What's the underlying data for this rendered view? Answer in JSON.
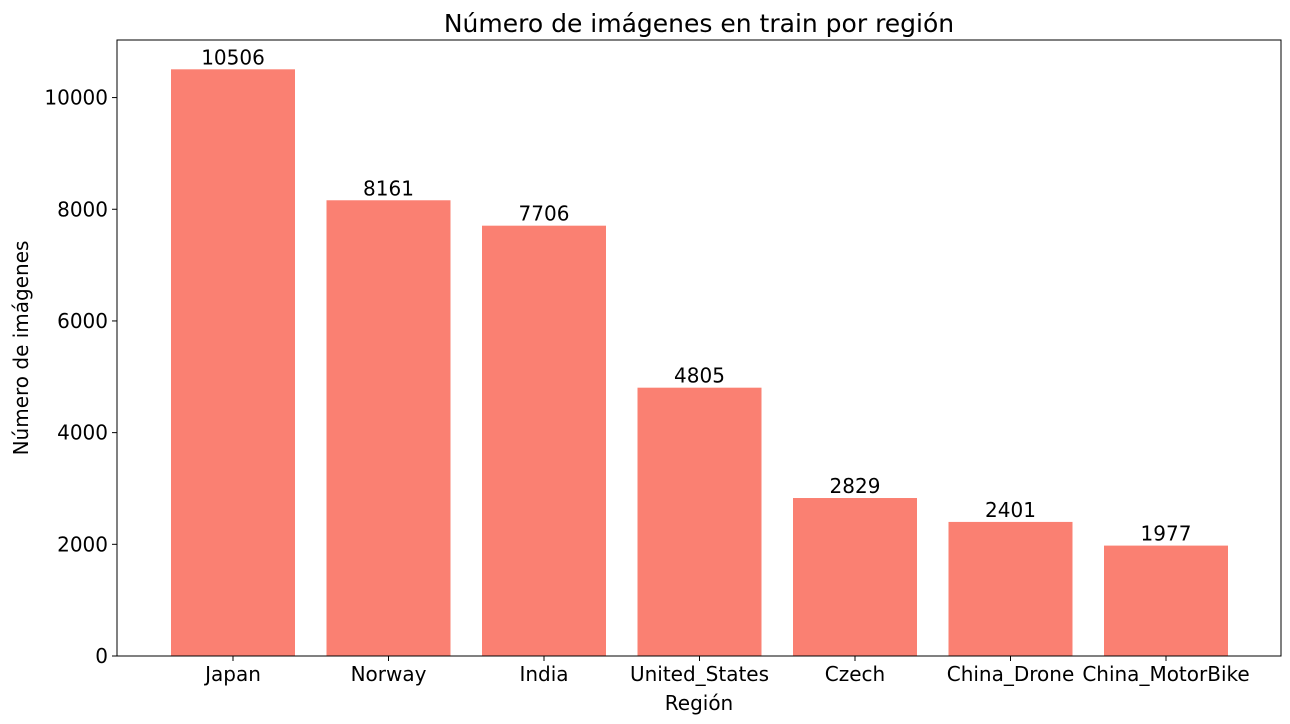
{
  "chart_data": {
    "type": "bar",
    "title": "Número de imágenes en train por región",
    "xlabel": "Región",
    "ylabel": "Número de imágenes",
    "categories": [
      "Japan",
      "Norway",
      "India",
      "United_States",
      "Czech",
      "China_Drone",
      "China_MotorBike"
    ],
    "values": [
      10506,
      8161,
      7706,
      4805,
      2829,
      2401,
      1977
    ],
    "data_labels": [
      "10506",
      "8161",
      "7706",
      "4805",
      "2829",
      "2401",
      "1977"
    ],
    "yticks": [
      0,
      2000,
      4000,
      6000,
      8000,
      10000
    ],
    "ytick_labels": [
      "0",
      "2000",
      "4000",
      "6000",
      "8000",
      "10000"
    ],
    "ylim": [
      0,
      11031
    ],
    "grid": false,
    "legend": "none",
    "bar_color": "#fa8072"
  }
}
